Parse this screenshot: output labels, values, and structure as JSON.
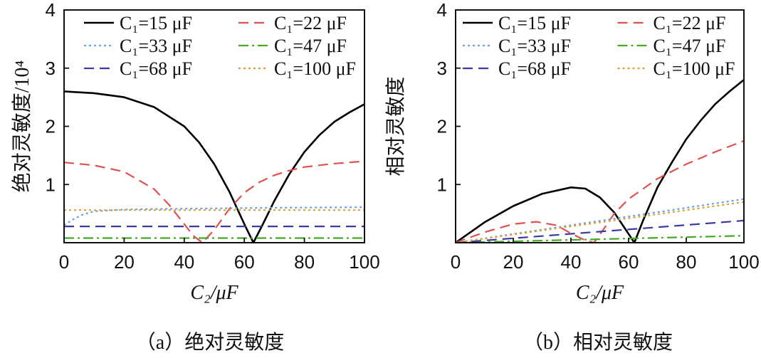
{
  "chart_data": [
    {
      "type": "line",
      "panel": "a",
      "caption": "（a）绝对灵敏度",
      "ylabel": "绝对灵敏度/10⁴",
      "xlabel": "C₂/μF",
      "xlim": [
        0,
        100
      ],
      "ylim": [
        0,
        4
      ],
      "xticks": [
        "0",
        "20",
        "40",
        "60",
        "80",
        "100"
      ],
      "yticks": [
        "1",
        "2",
        "3",
        "4"
      ],
      "series": [
        {
          "name": "C₁=15 μF",
          "color": "#000000",
          "dash": "solid",
          "x": [
            0,
            10,
            20,
            30,
            40,
            45,
            50,
            55,
            60,
            63,
            66,
            70,
            75,
            80,
            85,
            90,
            95,
            100
          ],
          "y": [
            2.6,
            2.57,
            2.5,
            2.33,
            2.0,
            1.72,
            1.35,
            0.88,
            0.32,
            0.0,
            0.3,
            0.72,
            1.18,
            1.56,
            1.85,
            2.08,
            2.24,
            2.38
          ]
        },
        {
          "name": "C₁=22 μF",
          "color": "#e05050",
          "dash": "dashed",
          "x": [
            0,
            10,
            20,
            30,
            35,
            40,
            43,
            46,
            50,
            55,
            60,
            65,
            70,
            75,
            80,
            90,
            100
          ],
          "y": [
            1.38,
            1.33,
            1.22,
            0.92,
            0.65,
            0.32,
            0.12,
            0.0,
            0.22,
            0.58,
            0.86,
            1.04,
            1.16,
            1.24,
            1.3,
            1.36,
            1.4
          ]
        },
        {
          "name": "C₁=33 μF",
          "color": "#6aa0e8",
          "dash": "dotted",
          "x": [
            0,
            3,
            6,
            10,
            20,
            30,
            50,
            70,
            100
          ],
          "y": [
            0.3,
            0.4,
            0.48,
            0.54,
            0.57,
            0.58,
            0.59,
            0.6,
            0.61
          ]
        },
        {
          "name": "C₁=47 μF",
          "color": "#44aa22",
          "dash": "dashdot",
          "x": [
            0,
            50,
            100
          ],
          "y": [
            0.08,
            0.08,
            0.08
          ]
        },
        {
          "name": "C₁=68 μF",
          "color": "#3a3aa0",
          "dash": "dashed",
          "x": [
            0,
            50,
            100
          ],
          "y": [
            0.28,
            0.28,
            0.28
          ]
        },
        {
          "name": "C₁=100 μF",
          "color": "#e0a030",
          "dash": "dotted",
          "x": [
            0,
            50,
            100
          ],
          "y": [
            0.56,
            0.56,
            0.56
          ]
        }
      ]
    },
    {
      "type": "line",
      "panel": "b",
      "caption": "（b）相对灵敏度",
      "ylabel": "相对灵敏度",
      "xlabel": "C₂/μF",
      "xlim": [
        0,
        100
      ],
      "ylim": [
        0,
        4
      ],
      "xticks": [
        "0",
        "20",
        "40",
        "60",
        "80",
        "100"
      ],
      "yticks": [
        "1",
        "2",
        "3",
        "4"
      ],
      "series": [
        {
          "name": "C₁=15 μF",
          "color": "#000000",
          "dash": "solid",
          "x": [
            0,
            10,
            20,
            30,
            40,
            45,
            50,
            55,
            60,
            62,
            65,
            70,
            75,
            80,
            85,
            90,
            95,
            100
          ],
          "y": [
            0.0,
            0.35,
            0.63,
            0.84,
            0.95,
            0.93,
            0.78,
            0.52,
            0.15,
            0.0,
            0.38,
            0.95,
            1.38,
            1.78,
            2.1,
            2.38,
            2.6,
            2.8
          ]
        },
        {
          "name": "C₁=22 μF",
          "color": "#e05050",
          "dash": "dashed",
          "x": [
            0,
            10,
            20,
            28,
            35,
            40,
            45,
            48,
            52,
            55,
            60,
            70,
            80,
            90,
            100
          ],
          "y": [
            0.0,
            0.18,
            0.32,
            0.36,
            0.3,
            0.16,
            0.04,
            0.0,
            0.28,
            0.5,
            0.75,
            1.1,
            1.35,
            1.56,
            1.75
          ]
        },
        {
          "name": "C₁=33 μF",
          "color": "#6aa0e8",
          "dash": "dotted",
          "x": [
            0,
            100
          ],
          "y": [
            0.0,
            0.75
          ]
        },
        {
          "name": "C₁=47 μF",
          "color": "#44aa22",
          "dash": "dashdot",
          "x": [
            0,
            100
          ],
          "y": [
            0.0,
            0.12
          ]
        },
        {
          "name": "C₁=68 μF",
          "color": "#3a3aa0",
          "dash": "dashed",
          "x": [
            0,
            100
          ],
          "y": [
            0.0,
            0.38
          ]
        },
        {
          "name": "C₁=100 μF",
          "color": "#e0a030",
          "dash": "dotted",
          "x": [
            0,
            100
          ],
          "y": [
            0.0,
            0.7
          ]
        }
      ]
    }
  ]
}
